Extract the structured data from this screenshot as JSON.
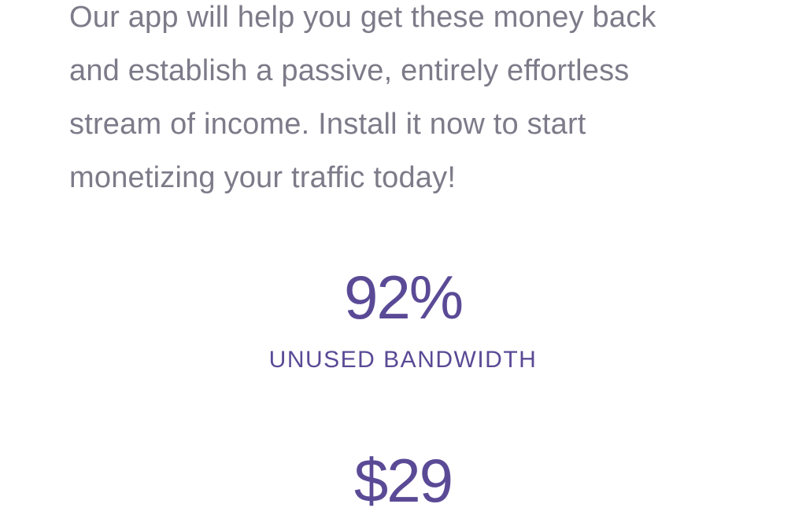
{
  "colors": {
    "background": "#ffffff",
    "paragraph_text": "#7d7b89",
    "accent_purple": "#5a4a96"
  },
  "intro": {
    "text": "Our app will help you get these money back and establish a passive, entirely effortless stream of income. Install it now to start monetizing your traffic today!",
    "lines": [
      "Our app will help you get these money back",
      "and establish a passive, entirely effortless",
      "stream of income. Install it now to start",
      "monetizing your traffic today!"
    ]
  },
  "stats": [
    {
      "value": "92%",
      "label": "UNUSED BANDWIDTH"
    },
    {
      "value": "$29",
      "label": ""
    }
  ]
}
